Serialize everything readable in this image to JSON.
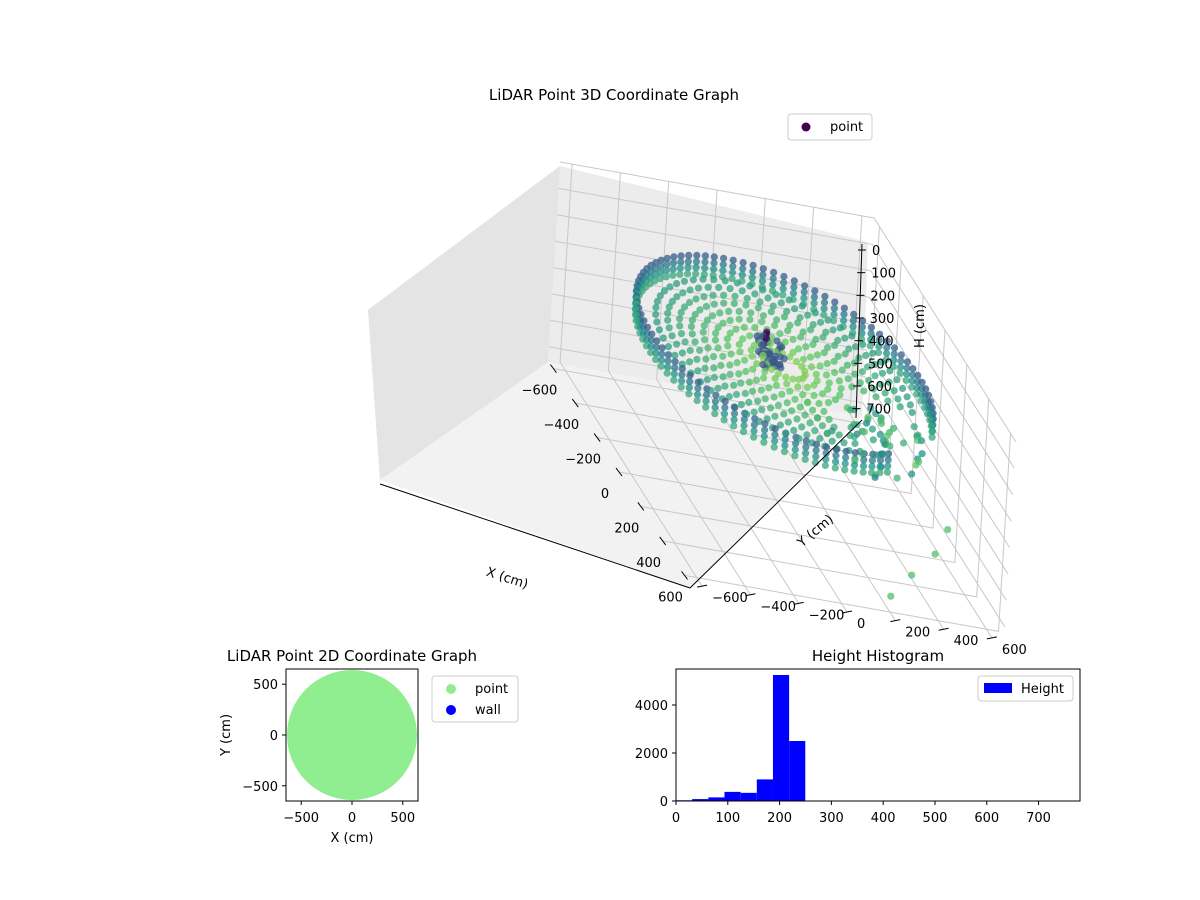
{
  "chart_data": [
    {
      "type": "scatter",
      "projection": "3d",
      "title": "LiDAR Point 3D Coordinate Graph",
      "xlabel": "X (cm)",
      "ylabel": "Y (cm)",
      "zlabel": "H (cm)",
      "x_ticks": [
        "−600",
        "−400",
        "−200",
        "0",
        "200",
        "400",
        "600"
      ],
      "y_ticks": [
        "−600",
        "−400",
        "−200",
        "0",
        "200",
        "400",
        "600"
      ],
      "z_ticks": [
        "0",
        "100",
        "200",
        "300",
        "400",
        "500",
        "600",
        "700"
      ],
      "xlim": [
        -650,
        650
      ],
      "ylim": [
        -650,
        650
      ],
      "zlim": [
        0,
        750
      ],
      "z_inverted": true,
      "colormap": "viridis",
      "legend": {
        "placement": "upper-right",
        "entries": [
          {
            "label": "point",
            "color": "#440154"
          }
        ]
      },
      "structure": {
        "outer_ring_radius": 560,
        "ring_height_range": [
          200,
          270
        ],
        "floor_height": 240,
        "center_cluster": {
          "x": -30,
          "y": -50,
          "h_range": [
            180,
            260
          ]
        },
        "stray_points": [
          {
            "x": 500,
            "y": 420,
            "h": 560
          },
          {
            "x": 560,
            "y": 300,
            "h": 620
          },
          {
            "x": 600,
            "y": 200,
            "h": 690
          },
          {
            "x": 430,
            "y": 500,
            "h": 500
          }
        ]
      },
      "grid": true
    },
    {
      "type": "scatter",
      "title": "LiDAR Point 2D Coordinate Graph",
      "xlabel": "X (cm)",
      "ylabel": "Y (cm)",
      "x_ticks": [
        "−500",
        "0",
        "500"
      ],
      "y_ticks": [
        "500",
        "0",
        "−500"
      ],
      "xlim": [
        -650,
        650
      ],
      "ylim": [
        -650,
        650
      ],
      "coverage_radius": 640,
      "legend": {
        "placement": "outside-right",
        "entries": [
          {
            "label": "point",
            "color": "#90ee90"
          },
          {
            "label": "wall",
            "color": "#0000ff"
          }
        ]
      }
    },
    {
      "type": "bar",
      "title": "Height Histogram",
      "xlabel": "",
      "ylabel": "",
      "x_ticks": [
        "0",
        "100",
        "200",
        "300",
        "400",
        "500",
        "600",
        "700"
      ],
      "y_ticks": [
        "0",
        "2000",
        "4000"
      ],
      "xlim": [
        0,
        780
      ],
      "ylim": [
        0,
        5500
      ],
      "bar_color": "#0000ff",
      "bins": [
        {
          "x0": 0,
          "x1": 31.2,
          "count": 30
        },
        {
          "x0": 31.2,
          "x1": 62.4,
          "count": 80
        },
        {
          "x0": 62.4,
          "x1": 93.6,
          "count": 150
        },
        {
          "x0": 93.6,
          "x1": 124.8,
          "count": 380
        },
        {
          "x0": 124.8,
          "x1": 156.0,
          "count": 340
        },
        {
          "x0": 156.0,
          "x1": 187.2,
          "count": 900
        },
        {
          "x0": 187.2,
          "x1": 218.4,
          "count": 5250
        },
        {
          "x0": 218.4,
          "x1": 249.6,
          "count": 2500
        },
        {
          "x0": 249.6,
          "x1": 280.8,
          "count": 10
        },
        {
          "x0": 280.8,
          "x1": 780,
          "count": 5
        }
      ],
      "legend": {
        "placement": "upper-right",
        "entries": [
          {
            "label": "Height",
            "color": "#0000ff"
          }
        ]
      }
    }
  ]
}
